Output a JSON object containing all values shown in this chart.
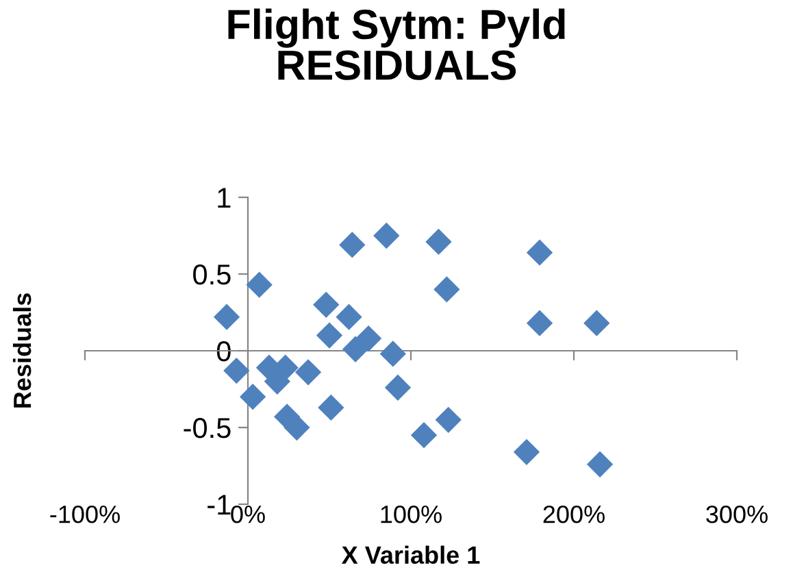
{
  "chart_data": {
    "type": "scatter",
    "title": "Flight Sytm: Pyld\nRESIDUALS",
    "xlabel": "X Variable 1",
    "ylabel": "Residuals",
    "x": [
      -0.13,
      -0.07,
      0.07,
      0.03,
      0.13,
      0.23,
      0.18,
      0.37,
      0.24,
      0.3,
      0.48,
      0.5,
      0.51,
      0.64,
      0.62,
      0.66,
      0.74,
      0.85,
      0.89,
      0.92,
      1.08,
      1.17,
      1.22,
      1.23,
      1.79,
      1.79,
      2.14,
      1.71,
      2.16
    ],
    "series": [
      {
        "color": "#4f81bd",
        "values": [
          0.22,
          -0.13,
          0.43,
          -0.3,
          -0.11,
          -0.11,
          -0.2,
          -0.14,
          -0.43,
          -0.5,
          0.3,
          0.1,
          -0.37,
          0.69,
          0.22,
          0.01,
          0.08,
          0.75,
          -0.02,
          -0.24,
          -0.55,
          0.71,
          0.4,
          -0.45,
          0.64,
          0.18,
          0.18,
          -0.66,
          -0.74
        ]
      }
    ],
    "xlim": [
      -1,
      3
    ],
    "xticks": [
      {
        "value": -1,
        "label": "-100%"
      },
      {
        "value": 0,
        "label": "0%"
      },
      {
        "value": 1,
        "label": "100%"
      },
      {
        "value": 2,
        "label": "200%"
      },
      {
        "value": 3,
        "label": "300%"
      }
    ],
    "ylim": [
      -1,
      1
    ],
    "yticks": [
      {
        "value": -1,
        "label": "-1"
      },
      {
        "value": -0.5,
        "label": "-0.5"
      },
      0,
      0.5,
      1
    ],
    "marker": "diamond",
    "legend": false
  }
}
